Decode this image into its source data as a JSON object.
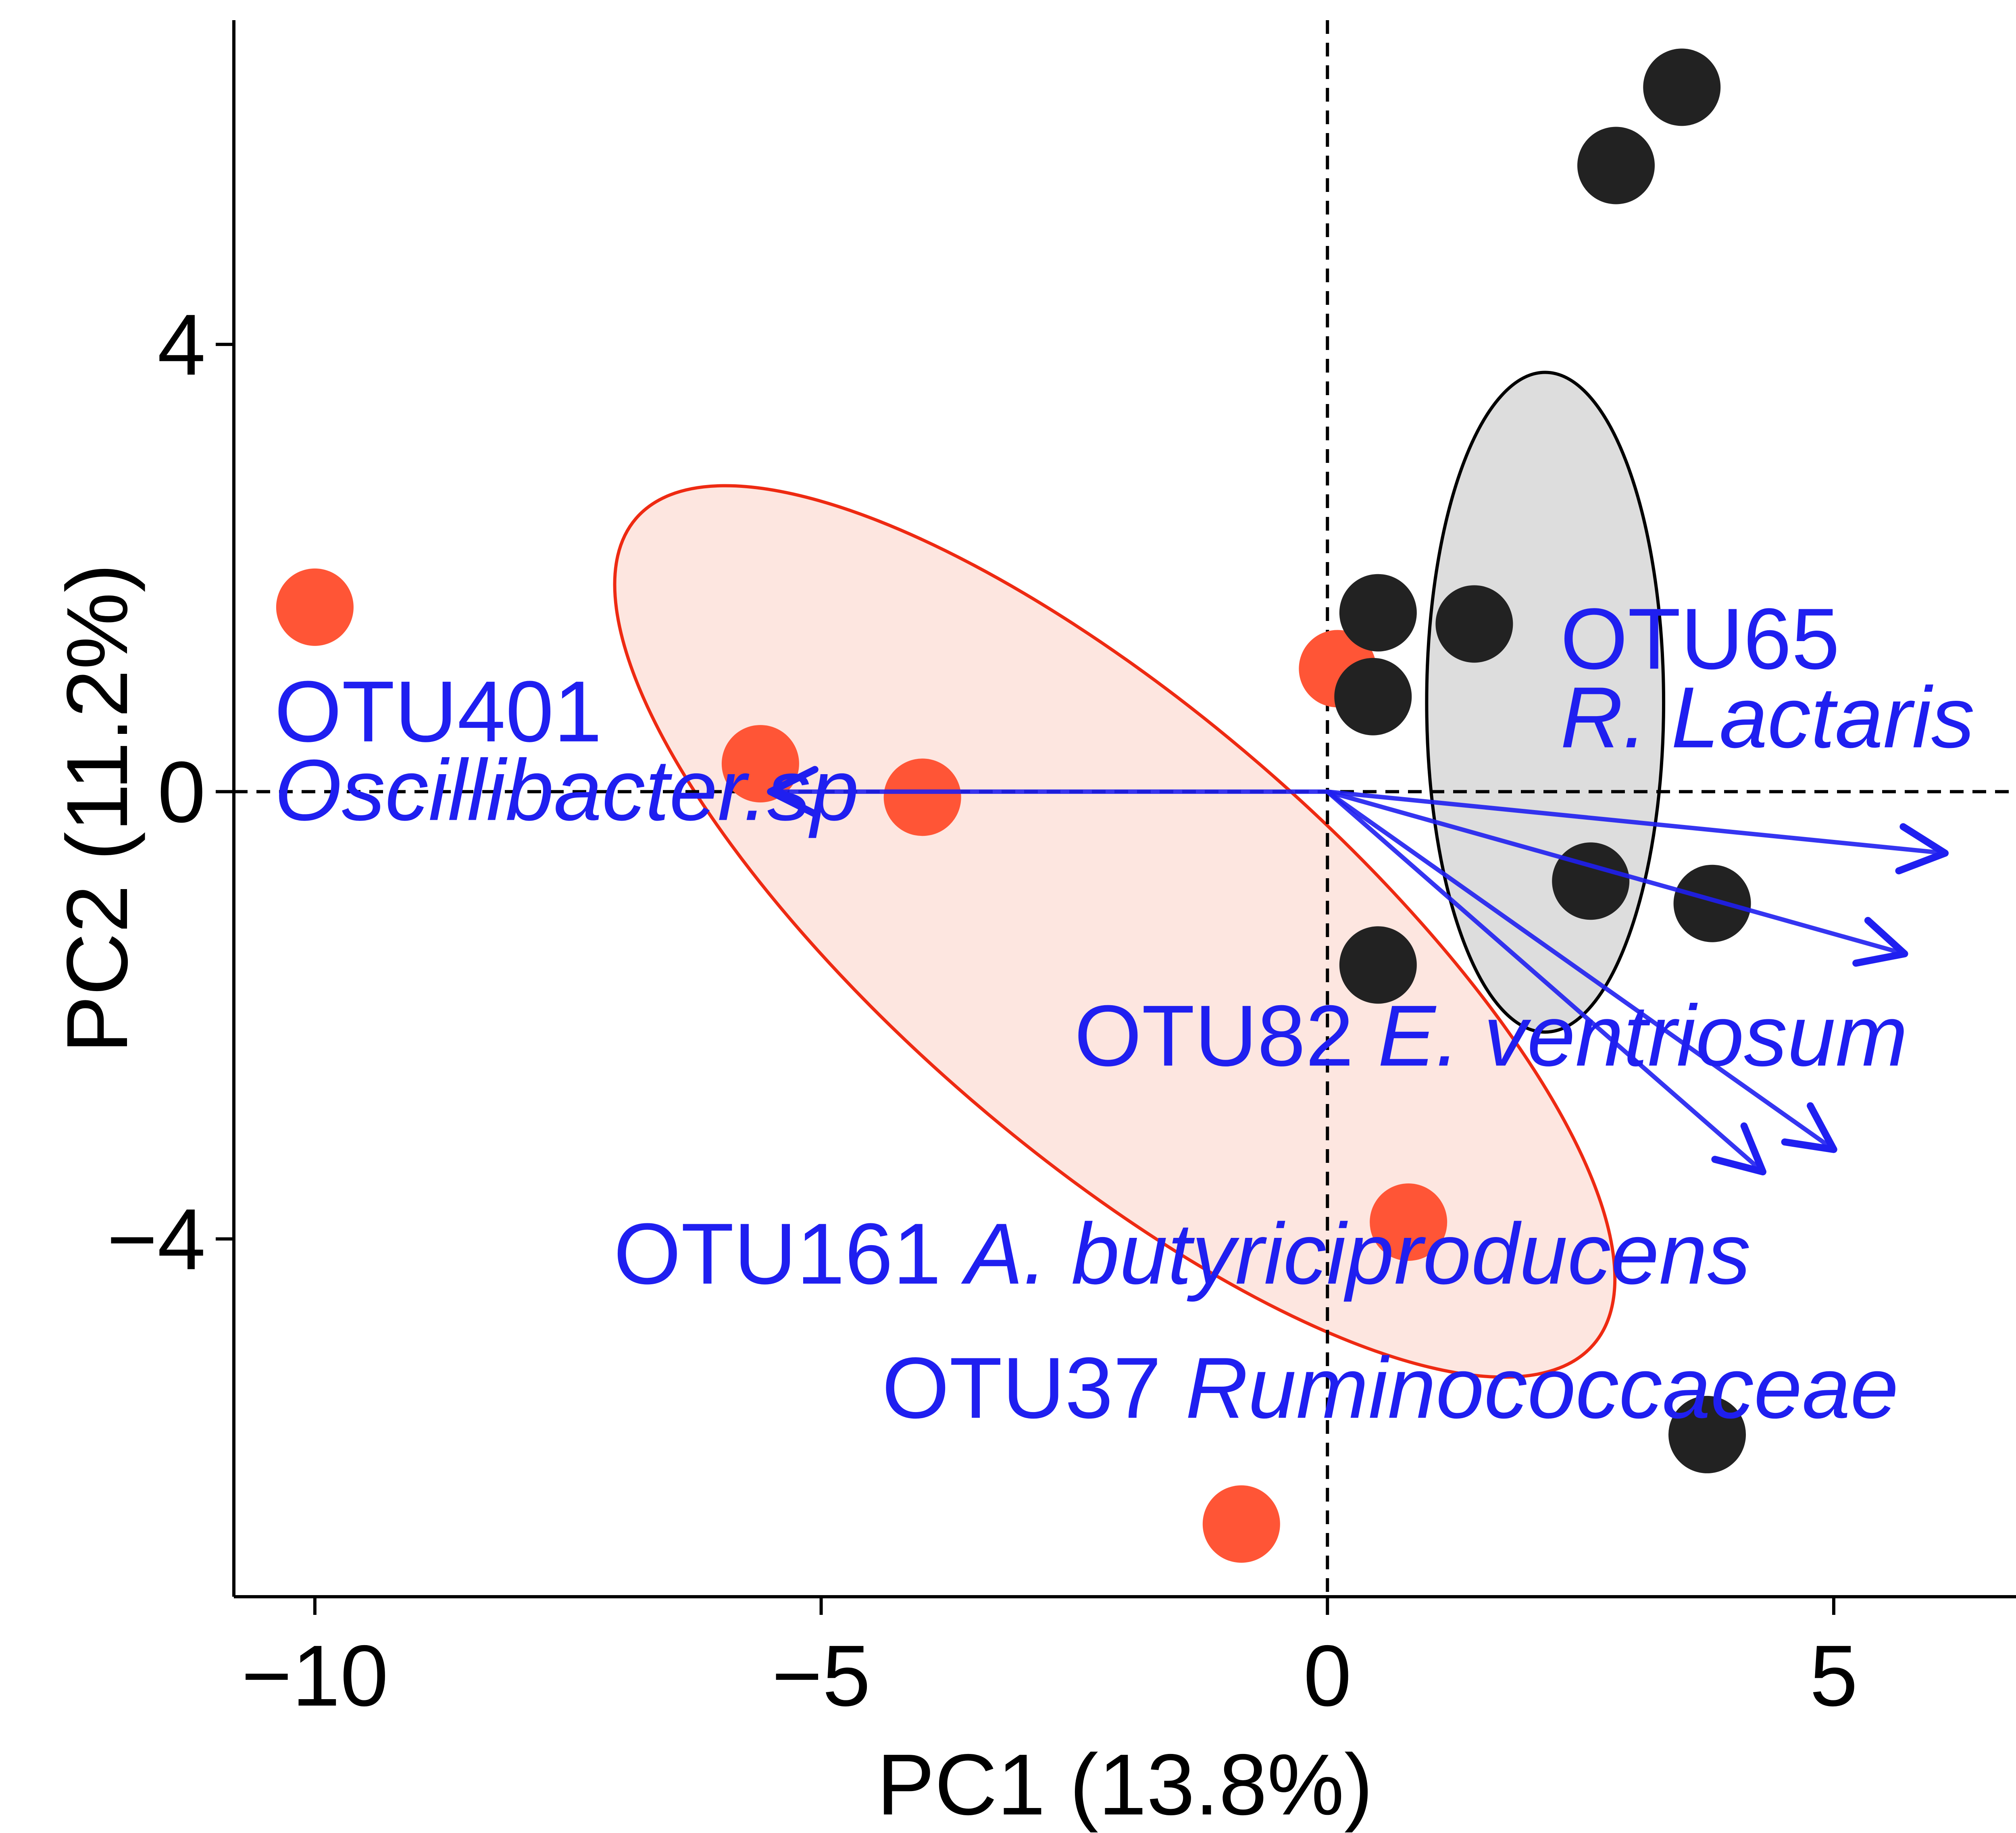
{
  "chart_data": {
    "type": "scatter",
    "title": "",
    "xlabel": "PC1 (13.8%)",
    "ylabel": "PC2 (11.2%)",
    "xlim": [
      -10.8,
      6.8
    ],
    "ylim": [
      -7.2,
      6.9
    ],
    "xticks": [
      -10,
      -5,
      0,
      5
    ],
    "yticks": [
      -4,
      0,
      4
    ],
    "xtick_labels": [
      "−10",
      "−5",
      "0",
      "5"
    ],
    "ytick_labels": [
      "−4",
      "0",
      "4"
    ],
    "grid": false,
    "reference_lines": {
      "x": 0,
      "y": 0,
      "style": "dashed"
    },
    "series": [
      {
        "color": "#ff5536",
        "points": [
          {
            "x": -10.0,
            "y": 1.65
          },
          {
            "x": -5.6,
            "y": 0.25
          },
          {
            "x": -4.0,
            "y": -0.05
          },
          {
            "x": 0.1,
            "y": 1.1
          },
          {
            "x": 0.8,
            "y": -3.85
          },
          {
            "x": -0.85,
            "y": -6.55
          }
        ],
        "ellipse": {
          "cx": -2.1,
          "cy": -1.25,
          "rx": 6.0,
          "ry": 2.05,
          "angle_deg": -38,
          "fill": "#fde6e0",
          "stroke": "#ee2a12"
        }
      },
      {
        "color": "#222222",
        "points": [
          {
            "x": 3.5,
            "y": 6.3
          },
          {
            "x": 2.85,
            "y": 5.6
          },
          {
            "x": 0.5,
            "y": 1.6
          },
          {
            "x": 1.45,
            "y": 1.5
          },
          {
            "x": 0.45,
            "y": 0.85
          },
          {
            "x": 2.6,
            "y": -0.8
          },
          {
            "x": 3.8,
            "y": -1.0
          },
          {
            "x": 0.5,
            "y": -1.55
          },
          {
            "x": 3.75,
            "y": -5.75
          }
        ],
        "ellipse": {
          "cx": 2.15,
          "cy": 0.8,
          "rx": 1.17,
          "ry": 2.95,
          "angle_deg": 0,
          "fill": "#dddddd",
          "stroke": "#000000"
        }
      }
    ],
    "loadings": {
      "color": "#1f1ff0",
      "origin": [
        0,
        0
      ],
      "arrows": [
        {
          "x": -5.5,
          "y": 0.0
        },
        {
          "x": 6.1,
          "y": -0.55
        },
        {
          "x": 5.7,
          "y": -1.45
        },
        {
          "x": 5.0,
          "y": -3.2
        },
        {
          "x": 4.3,
          "y": -3.4
        }
      ],
      "labels": [
        {
          "id": "otu401-label",
          "x": -10.4,
          "y": 0.45,
          "lines": [
            [
              {
                "text": "OTU401",
                "italic": false
              }
            ],
            [
              {
                "text": "Oscillibacter.sp",
                "italic": true
              }
            ]
          ]
        },
        {
          "id": "otu65-label",
          "x": 2.3,
          "y": 1.1,
          "lines": [
            [
              {
                "text": "OTU65",
                "italic": false
              }
            ],
            [
              {
                "text": "R. Lactaris",
                "italic": true
              }
            ]
          ]
        },
        {
          "id": "otu82-label",
          "x": -2.5,
          "y": -2.45,
          "lines": [
            [
              {
                "text": "OTU82 ",
                "italic": false
              },
              {
                "text": "E. ventriosum",
                "italic": true
              }
            ]
          ]
        },
        {
          "id": "otu161-label",
          "x": -7.05,
          "y": -4.4,
          "lines": [
            [
              {
                "text": "OTU161 ",
                "italic": false
              },
              {
                "text": "A. butyriciproducens",
                "italic": true
              }
            ]
          ]
        },
        {
          "id": "otu37-label",
          "x": -4.4,
          "y": -5.6,
          "lines": [
            [
              {
                "text": "OTU37 ",
                "italic": false
              },
              {
                "text": "Ruminococcaceae",
                "italic": true
              }
            ]
          ]
        }
      ]
    }
  }
}
